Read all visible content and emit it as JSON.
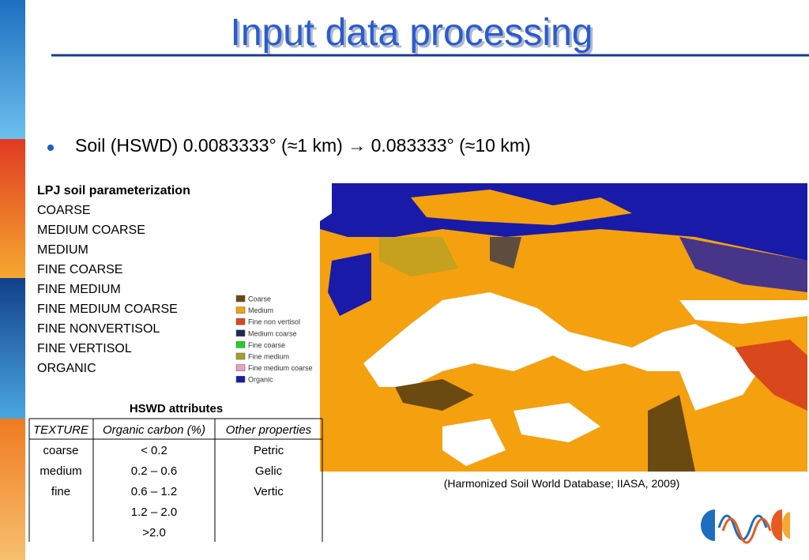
{
  "header": {
    "title": "Input data processing"
  },
  "bullet": "Soil (HSWD) 0.0083333° (≈1 km) → 0.083333° (≈10 km)",
  "soil_list": {
    "heading": "LPJ soil parameterization",
    "items": [
      "COARSE",
      "MEDIUM COARSE",
      "MEDIUM",
      "FINE COARSE",
      "FINE MEDIUM",
      "FINE MEDIUM COARSE",
      "FINE NONVERTISOL",
      "FINE VERTISOL",
      "ORGANIC"
    ]
  },
  "legend": [
    {
      "label": "Coarse",
      "color": "#6b4a12"
    },
    {
      "label": "Medium",
      "color": "#f5a00f"
    },
    {
      "label": "Fine non vertisol",
      "color": "#d9481c"
    },
    {
      "label": "Medium coarse",
      "color": "#1c2a55"
    },
    {
      "label": "Fine coarse",
      "color": "#22d022"
    },
    {
      "label": "Fine medium",
      "color": "#a6a02a"
    },
    {
      "label": "Fine medium coarse",
      "color": "#e8a0c8"
    },
    {
      "label": "Organic",
      "color": "#1a1aa8"
    }
  ],
  "table": {
    "caption": "HSWD attributes",
    "header": [
      "TEXTURE",
      "Organic carbon (%)",
      "Other properties"
    ],
    "rows": [
      [
        "coarse",
        "< 0.2",
        "Petric"
      ],
      [
        "medium",
        "0.2 – 0.6",
        "Gelic"
      ],
      [
        "fine",
        "0.6 – 1.2",
        "Vertic"
      ],
      [
        null,
        "1.2 – 2.0",
        null
      ],
      [
        null,
        ">2.0",
        null
      ]
    ]
  },
  "credit": "(Harmonized Soil World Database; IIASA, 2009)"
}
